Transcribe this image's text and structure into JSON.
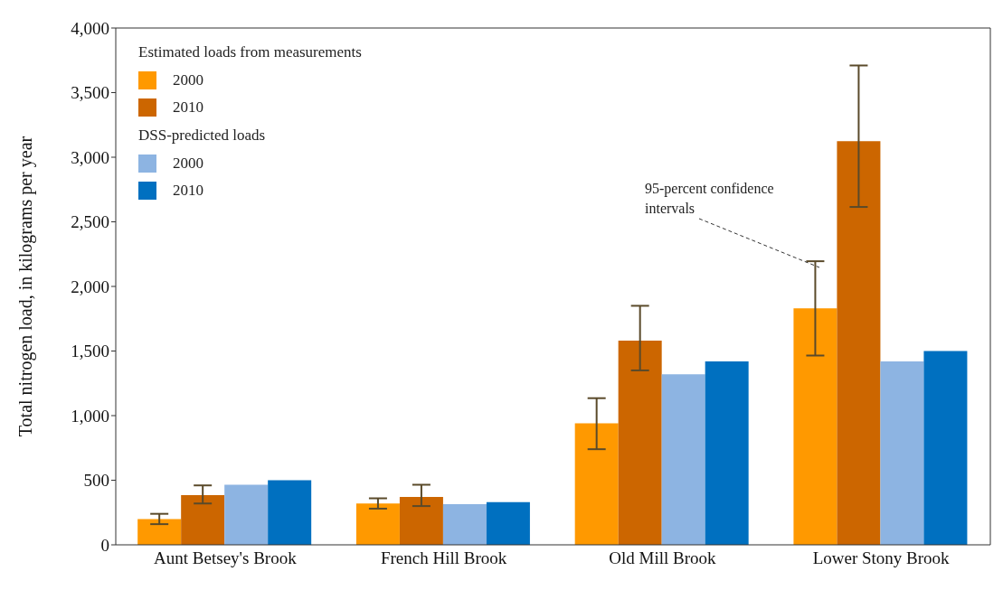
{
  "chart_data": {
    "type": "bar",
    "ylabel": "Total nitrogen load, in kilograms per year",
    "categories": [
      "Aunt Betsey's Brook",
      "French Hill Brook",
      "Old Mill Brook",
      "Lower Stony Brook"
    ],
    "series": [
      {
        "name": "2000",
        "color": "#ff9900",
        "values": [
          200,
          320,
          940,
          1830
        ],
        "errors": [
          [
            160,
            240
          ],
          [
            280,
            360
          ],
          [
            740,
            1135
          ],
          [
            1465,
            2195
          ]
        ]
      },
      {
        "name": "2010",
        "color": "#cc6600",
        "values": [
          385,
          370,
          1580,
          3125
        ],
        "errors": [
          [
            320,
            460
          ],
          [
            300,
            465
          ],
          [
            1350,
            1850
          ],
          [
            2615,
            3710
          ]
        ]
      },
      {
        "name": "2000",
        "color": "#8db4e2",
        "values": [
          465,
          315,
          1320,
          1420
        ]
      },
      {
        "name": "2010",
        "color": "#0070c0",
        "values": [
          500,
          330,
          1420,
          1500
        ]
      }
    ],
    "legend": "top left",
    "annotations": [
      "Estimated loads from measurements",
      "DSS-predicted loads",
      "95-percent confidence intervals"
    ],
    "ylim": [
      0,
      4000
    ],
    "yticks": [
      {
        "value": 0,
        "label": "0"
      },
      {
        "value": 500,
        "label": "500"
      },
      {
        "value": 1000,
        "label": "1,000"
      },
      {
        "value": 1500,
        "label": "1,500"
      },
      {
        "value": 2000,
        "label": "2,000"
      },
      {
        "value": 2500,
        "label": "2,500"
      },
      {
        "value": 3000,
        "label": "3,000"
      },
      {
        "value": 3500,
        "label": "3,500"
      },
      {
        "value": 4000,
        "label": "4,000"
      }
    ],
    "grid": false
  }
}
